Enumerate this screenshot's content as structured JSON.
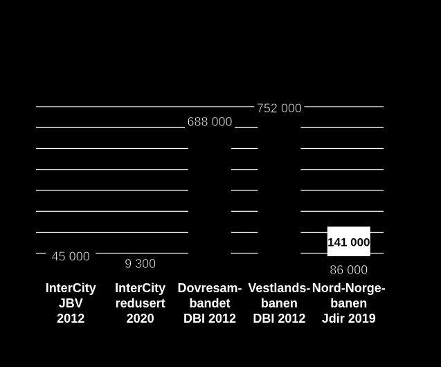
{
  "chart_data": {
    "type": "bar",
    "categories": [
      [
        "InterCity",
        "JBV",
        "2012"
      ],
      [
        "InterCity",
        "redusert",
        "2020"
      ],
      [
        "Dovresam-",
        "bandet",
        "DBI 2012"
      ],
      [
        "Vestlands-",
        "banen",
        "DBI 2012"
      ],
      [
        "Nord-Norge-",
        "banen",
        "Jdir 2019"
      ]
    ],
    "series": [
      {
        "values": [
          45000,
          9300,
          688000,
          752000,
          86000
        ]
      },
      {
        "values": [
          null,
          null,
          null,
          null,
          141000
        ]
      }
    ],
    "data_labels": [
      "45 000",
      "9 300",
      "688 000",
      "752 000",
      "86 000"
    ],
    "stack_label": "141 000",
    "ylim": [
      0,
      800000
    ],
    "grid": true,
    "colors": {
      "background": "#000000",
      "bar": "#000000",
      "gridline": "#ffffff",
      "stacked_bar": "#ffffff",
      "text": "#ffffff",
      "stack_label_text": "#000000"
    }
  }
}
